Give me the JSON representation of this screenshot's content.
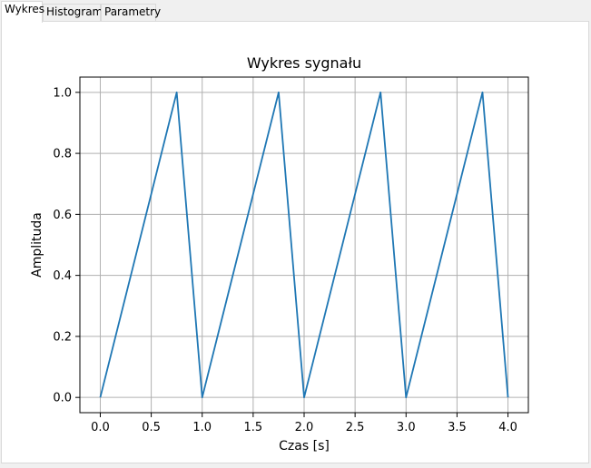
{
  "tabs": [
    {
      "label": "Wykres",
      "active": true
    },
    {
      "label": "Histogram",
      "active": false
    },
    {
      "label": "Parametry",
      "active": false
    }
  ],
  "colors": {
    "line": "#1f77b4",
    "grid": "#b0b0b0",
    "tab_border": "#d9d9d9",
    "window_bg": "#f0f0f0",
    "panel_bg": "#ffffff"
  },
  "chart_data": {
    "type": "line",
    "title": "Wykres sygnału",
    "xlabel": "Czas [s]",
    "ylabel": "Amplituda",
    "xlim": [
      -0.2,
      4.2
    ],
    "ylim": [
      -0.05,
      1.05
    ],
    "xticks": [
      0.0,
      0.5,
      1.0,
      1.5,
      2.0,
      2.5,
      3.0,
      3.5,
      4.0
    ],
    "xtick_labels": [
      "0.0",
      "0.5",
      "1.0",
      "1.5",
      "2.0",
      "2.5",
      "3.0",
      "3.5",
      "4.0"
    ],
    "yticks": [
      0.0,
      0.2,
      0.4,
      0.6,
      0.8,
      1.0
    ],
    "ytick_labels": [
      "0.0",
      "0.2",
      "0.4",
      "0.6",
      "0.8",
      "1.0"
    ],
    "grid": true,
    "series": [
      {
        "x": [
          0.0,
          0.75,
          1.0,
          1.75,
          2.0,
          2.75,
          3.0,
          3.75,
          4.0
        ],
        "y": [
          0.0,
          1.0,
          0.0,
          1.0,
          0.0,
          1.0,
          0.0,
          1.0,
          0.0
        ]
      }
    ]
  }
}
